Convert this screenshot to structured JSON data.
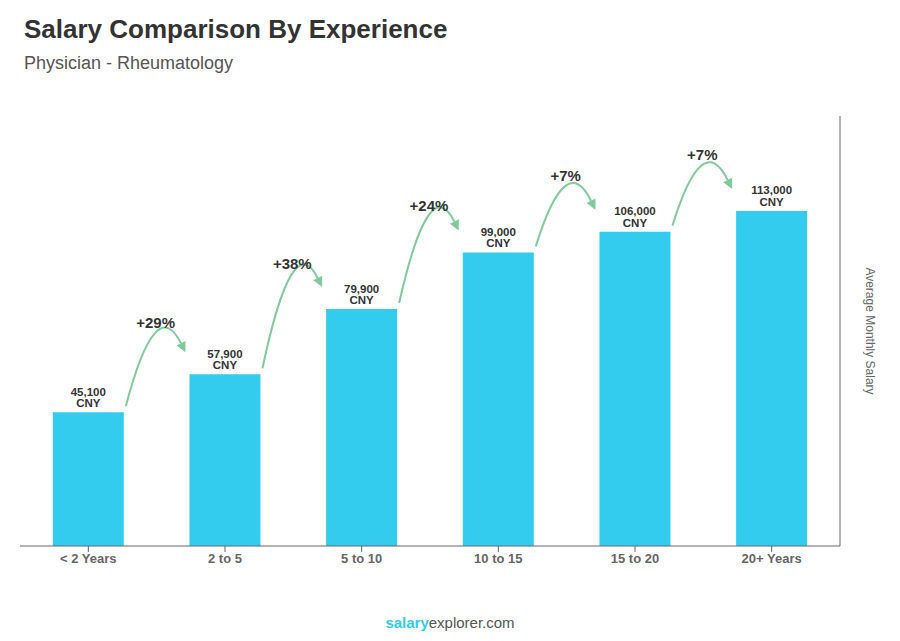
{
  "chart_data": {
    "type": "bar",
    "title": "Salary Comparison By Experience",
    "subtitle": "Physician - Rheumatology",
    "categories": [
      "< 2 Years",
      "2 to 5",
      "5 to 10",
      "10 to 15",
      "15 to 20",
      "20+ Years"
    ],
    "values": [
      45100,
      57900,
      79900,
      99000,
      106000,
      113000
    ],
    "value_labels": [
      "45,100 CNY",
      "57,900 CNY",
      "79,900 CNY",
      "99,000 CNY",
      "106,000 CNY",
      "113,000 CNY"
    ],
    "data_labels": true,
    "annotations": [
      "+29%",
      "+38%",
      "+24%",
      "+7%",
      "+7%"
    ],
    "y_label": "Average Monthly Salary",
    "ylim": [
      0,
      145000
    ],
    "tick_labels": "x",
    "grid": false,
    "color": "#33CCEE",
    "footer": [
      "salary",
      "explorer.com"
    ]
  }
}
